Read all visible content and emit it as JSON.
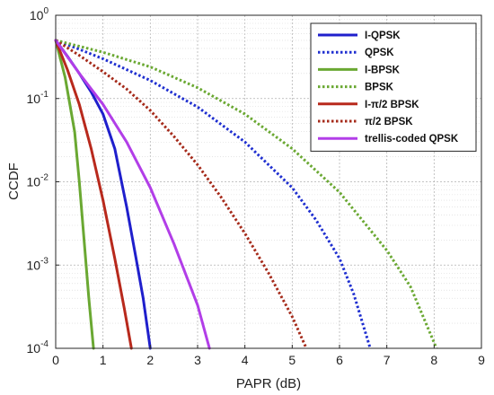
{
  "chart_data": {
    "type": "line",
    "title": "",
    "xlabel": "PAPR (dB)",
    "ylabel": "CCDF",
    "xlim": [
      0,
      9
    ],
    "ylim": [
      0.0001,
      1
    ],
    "yscale": "log",
    "x_ticks": [
      "0",
      "1",
      "2",
      "3",
      "4",
      "5",
      "6",
      "7",
      "8",
      "9"
    ],
    "y_ticks": [
      {
        "base": "10",
        "exp": "0"
      },
      {
        "base": "10",
        "exp": "-1"
      },
      {
        "base": "10",
        "exp": "-2"
      },
      {
        "base": "10",
        "exp": "-3"
      },
      {
        "base": "10",
        "exp": "-4"
      }
    ],
    "grid": true,
    "legend_position": "top-right",
    "series": [
      {
        "name": "I-QPSK",
        "color": "#1f1fcc",
        "style": "solid",
        "x": [
          0,
          0.25,
          0.5,
          0.75,
          1.0,
          1.25,
          1.5,
          1.7,
          1.85,
          2.0
        ],
        "y": [
          0.5,
          0.32,
          0.2,
          0.12,
          0.065,
          0.025,
          0.005,
          0.0012,
          0.0004,
          0.0001
        ]
      },
      {
        "name": "QPSK",
        "color": "#1f2fd0",
        "style": "dotted",
        "x": [
          0,
          0.5,
          1,
          2,
          3,
          4,
          5,
          5.5,
          6,
          6.3,
          6.65
        ],
        "y": [
          0.5,
          0.39,
          0.3,
          0.165,
          0.079,
          0.03,
          0.0085,
          0.0035,
          0.0012,
          0.00045,
          0.0001
        ]
      },
      {
        "name": "I-BPSK",
        "color": "#6aa832",
        "style": "solid",
        "x": [
          0,
          0.2,
          0.4,
          0.5,
          0.6,
          0.7,
          0.8
        ],
        "y": [
          0.5,
          0.18,
          0.04,
          0.01,
          0.002,
          0.0004,
          0.0001
        ]
      },
      {
        "name": "BPSK",
        "color": "#6aa832",
        "style": "dotted",
        "x": [
          0,
          1,
          2,
          3,
          4,
          5,
          6,
          7,
          7.5,
          8.05
        ],
        "y": [
          0.5,
          0.36,
          0.24,
          0.135,
          0.065,
          0.025,
          0.0075,
          0.0015,
          0.00055,
          0.0001
        ]
      },
      {
        "name": "I-π/2 BPSK",
        "color": "#b8291c",
        "style": "solid",
        "x": [
          0,
          0.25,
          0.5,
          0.75,
          1.0,
          1.25,
          1.45,
          1.6
        ],
        "y": [
          0.5,
          0.22,
          0.085,
          0.025,
          0.006,
          0.0012,
          0.0003,
          0.0001
        ]
      },
      {
        "name": "π/2 BPSK",
        "color": "#a52a1a",
        "style": "dotted",
        "x": [
          0,
          0.5,
          1,
          1.5,
          2,
          2.5,
          3,
          3.5,
          4,
          4.5,
          5,
          5.3
        ],
        "y": [
          0.5,
          0.33,
          0.21,
          0.13,
          0.072,
          0.035,
          0.016,
          0.0065,
          0.0024,
          0.0008,
          0.00024,
          0.0001
        ]
      },
      {
        "name": "trellis-coded QPSK",
        "color": "#b23ee8",
        "style": "solid",
        "x": [
          0,
          0.5,
          1,
          1.5,
          2,
          2.5,
          3,
          3.25
        ],
        "y": [
          0.5,
          0.2,
          0.085,
          0.03,
          0.0085,
          0.0018,
          0.00033,
          0.0001
        ]
      }
    ]
  }
}
